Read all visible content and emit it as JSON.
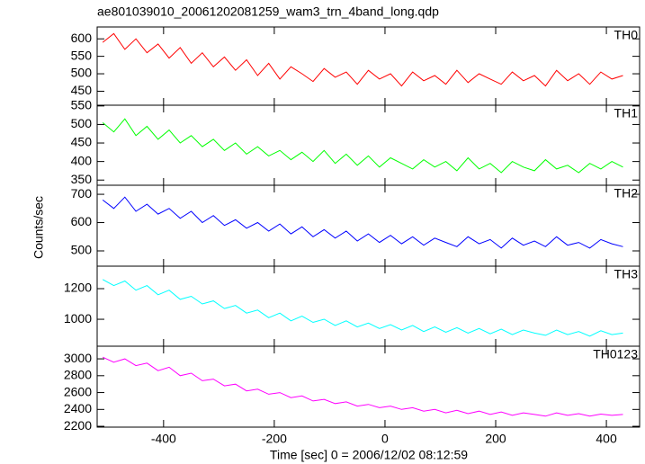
{
  "chart_data": {
    "type": "line",
    "title": "ae801039010_20061202081259_wam3_trn_4band_long.qdp",
    "xlabel": "Time [sec] 0 = 2006/12/02 08:12:59",
    "ylabel": "Counts/sec",
    "xlim": [
      -520,
      460
    ],
    "xticks": [
      -400,
      -200,
      0,
      200,
      400
    ],
    "x": [
      -510,
      -490,
      -470,
      -450,
      -430,
      -410,
      -390,
      -370,
      -350,
      -330,
      -310,
      -290,
      -270,
      -250,
      -230,
      -210,
      -190,
      -170,
      -150,
      -130,
      -110,
      -90,
      -70,
      -50,
      -30,
      -10,
      10,
      30,
      50,
      70,
      90,
      110,
      130,
      150,
      170,
      190,
      210,
      230,
      250,
      270,
      290,
      310,
      330,
      350,
      370,
      390,
      410,
      430
    ],
    "series": [
      {
        "name": "TH0",
        "color": "#ff0000",
        "ylim": [
          410,
          634
        ],
        "yticks": [
          450,
          500,
          550,
          600
        ],
        "values": [
          590,
          615,
          570,
          600,
          560,
          585,
          545,
          575,
          530,
          560,
          520,
          548,
          510,
          540,
          495,
          530,
          485,
          520,
          500,
          478,
          515,
          490,
          505,
          470,
          510,
          485,
          500,
          465,
          505,
          480,
          495,
          470,
          510,
          475,
          500,
          485,
          470,
          505,
          480,
          495,
          465,
          510,
          480,
          500,
          470,
          505,
          485,
          495
        ]
      },
      {
        "name": "TH1",
        "color": "#00ff00",
        "ylim": [
          336,
          552
        ],
        "yticks": [
          350,
          400,
          450,
          500,
          550
        ],
        "values": [
          505,
          480,
          515,
          470,
          495,
          460,
          485,
          450,
          470,
          440,
          460,
          430,
          450,
          420,
          440,
          415,
          430,
          405,
          425,
          400,
          430,
          395,
          420,
          390,
          415,
          385,
          410,
          395,
          380,
          405,
          385,
          400,
          375,
          410,
          380,
          395,
          370,
          400,
          385,
          375,
          405,
          380,
          390,
          370,
          395,
          380,
          400,
          385
        ]
      },
      {
        "name": "TH2",
        "color": "#0000ff",
        "ylim": [
          446,
          732
        ],
        "yticks": [
          500,
          600,
          700
        ],
        "values": [
          680,
          650,
          690,
          640,
          665,
          630,
          650,
          615,
          640,
          600,
          625,
          590,
          610,
          580,
          600,
          570,
          595,
          560,
          585,
          550,
          575,
          545,
          570,
          535,
          560,
          530,
          555,
          525,
          550,
          520,
          545,
          530,
          515,
          550,
          525,
          540,
          510,
          545,
          520,
          535,
          515,
          550,
          520,
          530,
          510,
          540,
          525,
          515
        ]
      },
      {
        "name": "TH3",
        "color": "#00ffff",
        "ylim": [
          824,
          1347
        ],
        "yticks": [
          1000,
          1200
        ],
        "values": [
          1260,
          1220,
          1250,
          1190,
          1220,
          1160,
          1190,
          1130,
          1150,
          1100,
          1120,
          1070,
          1090,
          1040,
          1060,
          1010,
          1040,
          990,
          1020,
          980,
          1000,
          960,
          990,
          950,
          975,
          940,
          965,
          930,
          960,
          920,
          950,
          915,
          945,
          910,
          940,
          905,
          935,
          900,
          930,
          910,
          895,
          930,
          900,
          920,
          890,
          925,
          900,
          910
        ]
      },
      {
        "name": "TH0123",
        "color": "#ff00ff",
        "ylim": [
          2190,
          3150
        ],
        "yticks": [
          2200,
          2400,
          2600,
          2800,
          3000
        ],
        "values": [
          3020,
          2960,
          3000,
          2920,
          2950,
          2860,
          2900,
          2800,
          2830,
          2740,
          2760,
          2680,
          2700,
          2620,
          2640,
          2580,
          2600,
          2540,
          2560,
          2500,
          2520,
          2470,
          2490,
          2440,
          2460,
          2420,
          2440,
          2400,
          2420,
          2380,
          2400,
          2360,
          2390,
          2350,
          2380,
          2340,
          2370,
          2330,
          2360,
          2340,
          2320,
          2360,
          2330,
          2350,
          2320,
          2345,
          2330,
          2340
        ]
      }
    ]
  }
}
